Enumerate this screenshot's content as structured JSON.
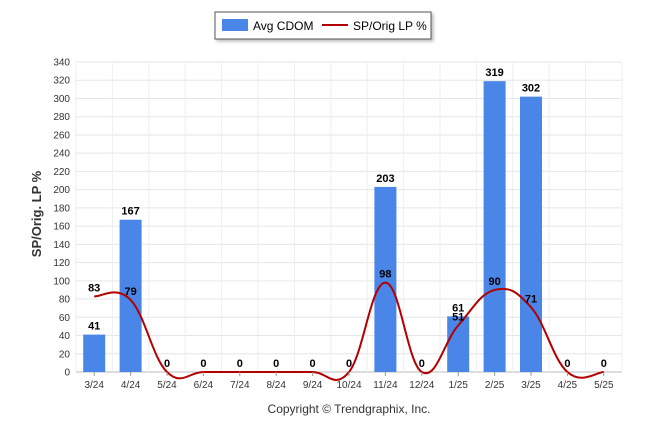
{
  "chart_data": {
    "type": "bar",
    "categories": [
      "3/24",
      "4/24",
      "5/24",
      "6/24",
      "7/24",
      "8/24",
      "9/24",
      "10/24",
      "11/24",
      "12/24",
      "1/25",
      "2/25",
      "3/25",
      "4/25",
      "5/25"
    ],
    "series": [
      {
        "name": "Avg CDOM",
        "type": "bar",
        "color": "#4a86e8",
        "values": [
          41,
          167,
          0,
          0,
          0,
          0,
          0,
          0,
          203,
          0,
          61,
          319,
          302,
          0,
          0
        ]
      },
      {
        "name": "SP/Orig LP %",
        "type": "line",
        "color": "#b30000",
        "values": [
          83,
          79,
          0,
          0,
          0,
          0,
          0,
          0,
          98,
          0,
          51,
          90,
          71,
          0,
          0
        ],
        "labels": [
          "83",
          "79",
          "",
          "",
          "",
          "",
          "",
          "",
          "98",
          "",
          "51",
          "90",
          "71",
          "",
          ""
        ]
      }
    ],
    "bar_labels": [
      "41",
      "167",
      "0",
      "0",
      "0",
      "0",
      "0",
      "0",
      "203",
      "0",
      "61",
      "319",
      "302",
      "0",
      "0"
    ],
    "ylabel": "SP/Orig. LP %",
    "ylim": [
      0,
      340
    ],
    "yticks": [
      0,
      20,
      40,
      60,
      80,
      100,
      120,
      140,
      160,
      180,
      200,
      220,
      240,
      260,
      280,
      300,
      320,
      340
    ],
    "grid": true,
    "legend_position": "top-center"
  },
  "legend": {
    "bar_label": "Avg CDOM",
    "line_label": "SP/Orig LP %"
  },
  "footer": {
    "credit": "Copyright © Trendgraphix, Inc."
  }
}
